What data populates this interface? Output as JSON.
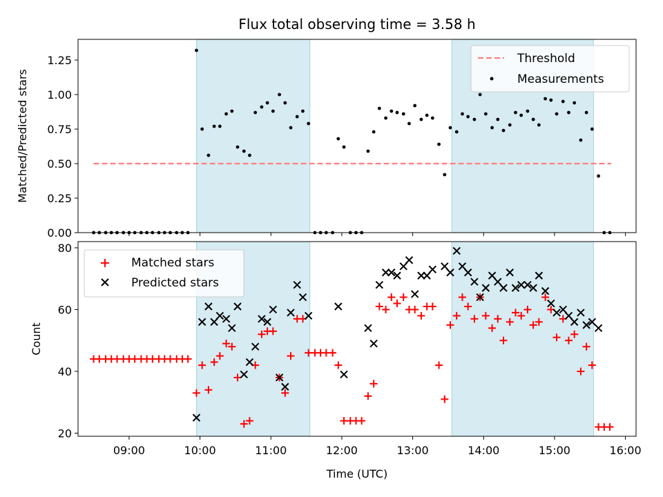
{
  "chart_data": [
    {
      "type": "scatter",
      "panel": "top",
      "title": "Flux total observing time = 3.58 h",
      "xlabel": "",
      "ylabel": "Matched/Predicted stars",
      "xlim": [
        8.28,
        16.15
      ],
      "ylim": [
        0,
        1.4
      ],
      "yticks": [
        0.0,
        0.25,
        0.5,
        0.75,
        1.0,
        1.25
      ],
      "ytick_labels": [
        "0.00",
        "0.25",
        "0.50",
        "0.75",
        "1.00",
        "1.25"
      ],
      "shaded_intervals": [
        [
          9.95,
          11.55
        ],
        [
          13.55,
          15.55
        ]
      ],
      "threshold": {
        "name": "Threshold",
        "value": 0.5,
        "x_range": [
          8.5,
          15.8
        ],
        "color": "#ff7f7f"
      },
      "legend": {
        "position": "top-right",
        "entries": [
          "Threshold",
          "Measurements"
        ]
      },
      "series": [
        {
          "name": "Measurements",
          "color": "#000000",
          "x": [
            8.5,
            8.58,
            8.67,
            8.75,
            8.83,
            8.92,
            9.0,
            9.08,
            9.17,
            9.25,
            9.33,
            9.42,
            9.5,
            9.58,
            9.67,
            9.75,
            9.83,
            9.95,
            10.03,
            10.12,
            10.2,
            10.28,
            10.37,
            10.45,
            10.53,
            10.62,
            10.7,
            10.78,
            10.87,
            10.95,
            11.03,
            11.12,
            11.2,
            11.28,
            11.37,
            11.45,
            11.53,
            11.62,
            11.7,
            11.78,
            11.87,
            11.95,
            12.03,
            12.12,
            12.2,
            12.28,
            12.37,
            12.45,
            12.53,
            12.62,
            12.7,
            12.78,
            12.87,
            12.95,
            13.03,
            13.12,
            13.2,
            13.28,
            13.37,
            13.45,
            13.53,
            13.62,
            13.7,
            13.78,
            13.87,
            13.95,
            14.03,
            14.12,
            14.2,
            14.28,
            14.37,
            14.45,
            14.53,
            14.62,
            14.7,
            14.78,
            14.87,
            14.95,
            15.03,
            15.12,
            15.2,
            15.28,
            15.37,
            15.45,
            15.53,
            15.62,
            15.7,
            15.78
          ],
          "y": [
            0,
            0,
            0,
            0,
            0,
            0,
            0,
            0,
            0,
            0,
            0,
            0,
            0,
            0,
            0,
            0,
            0,
            1.32,
            0.75,
            0.56,
            0.77,
            0.77,
            0.86,
            0.88,
            0.62,
            0.59,
            0.56,
            0.87,
            0.91,
            0.94,
            0.88,
            1.0,
            0.94,
            0.76,
            0.84,
            0.88,
            0.79,
            0,
            0,
            0,
            0,
            0.68,
            0.62,
            0,
            0,
            0,
            0.59,
            0.73,
            0.9,
            0.83,
            0.88,
            0.87,
            0.86,
            0.79,
            0.92,
            0.82,
            0.85,
            0.83,
            0.64,
            0.42,
            0.76,
            0.73,
            0.86,
            0.84,
            0.82,
            1.0,
            0.86,
            0.76,
            0.82,
            0.74,
            0.78,
            0.87,
            0.85,
            0.88,
            0.82,
            0.78,
            0.97,
            0.96,
            0.86,
            0.95,
            0.87,
            0.94,
            0.67,
            0.87,
            0.75,
            0.41,
            0,
            0
          ]
        }
      ]
    },
    {
      "type": "scatter",
      "panel": "bottom",
      "title": "",
      "xlabel": "Time (UTC)",
      "ylabel": "Count",
      "xlim": [
        8.28,
        16.15
      ],
      "ylim": [
        19,
        82
      ],
      "yticks": [
        20,
        40,
        60,
        80
      ],
      "ytick_labels": [
        "20",
        "40",
        "60",
        "80"
      ],
      "xticks": [
        9,
        10,
        11,
        12,
        13,
        14,
        15,
        16
      ],
      "xtick_labels": [
        "09:00",
        "10:00",
        "11:00",
        "12:00",
        "13:00",
        "14:00",
        "15:00",
        "16:00"
      ],
      "shaded_intervals": [
        [
          9.95,
          11.55
        ],
        [
          13.55,
          15.55
        ]
      ],
      "legend": {
        "position": "top-left",
        "entries": [
          "Matched stars",
          "Predicted stars"
        ]
      },
      "series": [
        {
          "name": "Matched stars",
          "marker": "+",
          "color": "#ff0000",
          "x": [
            8.5,
            8.58,
            8.67,
            8.75,
            8.83,
            8.92,
            9.0,
            9.08,
            9.17,
            9.25,
            9.33,
            9.42,
            9.5,
            9.58,
            9.67,
            9.75,
            9.83,
            9.95,
            10.03,
            10.12,
            10.2,
            10.28,
            10.37,
            10.45,
            10.53,
            10.62,
            10.7,
            10.78,
            10.87,
            10.95,
            11.03,
            11.12,
            11.2,
            11.28,
            11.37,
            11.45,
            11.53,
            11.62,
            11.7,
            11.78,
            11.87,
            11.95,
            12.03,
            12.12,
            12.2,
            12.28,
            12.37,
            12.45,
            12.53,
            12.62,
            12.7,
            12.78,
            12.87,
            12.95,
            13.03,
            13.12,
            13.2,
            13.28,
            13.37,
            13.45,
            13.53,
            13.62,
            13.7,
            13.78,
            13.87,
            13.95,
            14.03,
            14.12,
            14.2,
            14.28,
            14.37,
            14.45,
            14.53,
            14.62,
            14.7,
            14.78,
            14.87,
            14.95,
            15.03,
            15.12,
            15.2,
            15.28,
            15.37,
            15.45,
            15.53,
            15.62,
            15.7,
            15.78
          ],
          "y": [
            44,
            44,
            44,
            44,
            44,
            44,
            44,
            44,
            44,
            44,
            44,
            44,
            44,
            44,
            44,
            44,
            44,
            33,
            42,
            34,
            43,
            45,
            49,
            48,
            38,
            23,
            24,
            42,
            52,
            53,
            53,
            38,
            33,
            45,
            57,
            57,
            46,
            46,
            46,
            46,
            46,
            42,
            24,
            24,
            24,
            24,
            32,
            36,
            61,
            60,
            64,
            62,
            64,
            60,
            60,
            58,
            61,
            61,
            42,
            31,
            55,
            58,
            64,
            61,
            57,
            64,
            58,
            54,
            57,
            50,
            56,
            59,
            58,
            60,
            55,
            56,
            64,
            60,
            51,
            57,
            50,
            52,
            40,
            48,
            42,
            22,
            22,
            22
          ]
        },
        {
          "name": "Predicted stars",
          "marker": "x",
          "color": "#000000",
          "x": [
            9.95,
            10.03,
            10.12,
            10.2,
            10.28,
            10.37,
            10.45,
            10.53,
            10.62,
            10.7,
            10.78,
            10.87,
            10.95,
            11.03,
            11.12,
            11.2,
            11.28,
            11.37,
            11.45,
            11.53,
            11.95,
            12.03,
            12.37,
            12.45,
            12.53,
            12.62,
            12.7,
            12.78,
            12.87,
            12.95,
            13.03,
            13.12,
            13.2,
            13.28,
            13.45,
            13.53,
            13.62,
            13.7,
            13.78,
            13.87,
            13.95,
            14.03,
            14.12,
            14.2,
            14.28,
            14.37,
            14.45,
            14.53,
            14.62,
            14.7,
            14.78,
            14.87,
            14.95,
            15.03,
            15.12,
            15.2,
            15.28,
            15.37,
            15.45,
            15.53,
            15.62
          ],
          "y": [
            25,
            56,
            61,
            56,
            58,
            57,
            54,
            61,
            39,
            43,
            48,
            57,
            56,
            60,
            38,
            35,
            59,
            68,
            64,
            58,
            61,
            39,
            54,
            49,
            68,
            72,
            72,
            71,
            74,
            76,
            65,
            71,
            71,
            73,
            74,
            72,
            79,
            74,
            72,
            69,
            64,
            67,
            71,
            69,
            67,
            72,
            67,
            68,
            68,
            67,
            71,
            66,
            62,
            59,
            60,
            58,
            56,
            59,
            55,
            56,
            54
          ]
        }
      ]
    }
  ]
}
